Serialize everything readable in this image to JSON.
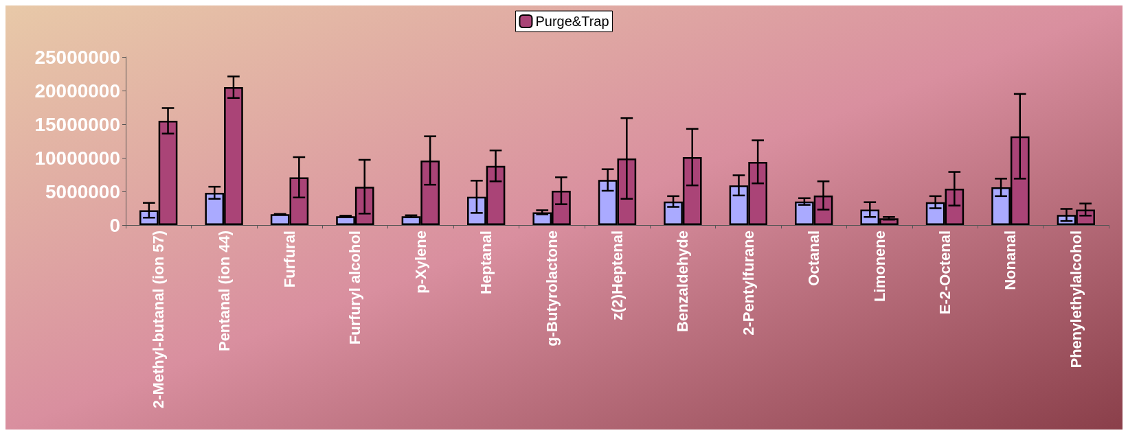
{
  "chart_data": {
    "type": "bar",
    "legend": "top",
    "grid": false,
    "categories": [
      "2-Methyl-butanal (ion 57)",
      "Pentanal (ion 44)",
      "Furfural",
      "Furfuryl alcohol",
      "p-Xylene",
      "Heptanal",
      "g-Butyrolactone",
      "z(2)Heptenal",
      "Benzaldehyde",
      "2-Pentylfurane",
      "Octanal",
      "Limonene",
      "E-2-Octenal",
      "Nonanal",
      "Phenylethylalcohol"
    ],
    "ylim": [
      0,
      25000000
    ],
    "yticks": [
      0,
      5000000,
      10000000,
      15000000,
      20000000,
      25000000
    ],
    "series": [
      {
        "color": "#aaaaff",
        "values": [
          2200000,
          4800000,
          1600000,
          1300000,
          1300000,
          4200000,
          1900000,
          6700000,
          3500000,
          5900000,
          3500000,
          2300000,
          3400000,
          5600000,
          1500000
        ],
        "errors": [
          1100000,
          900000,
          50000,
          100000,
          150000,
          2400000,
          300000,
          1600000,
          800000,
          1500000,
          500000,
          1100000,
          900000,
          1300000,
          900000
        ]
      },
      {
        "name": "Purge&Trap",
        "color": "#aa4477",
        "values": [
          15500000,
          20500000,
          7100000,
          5700000,
          9600000,
          8800000,
          5100000,
          9900000,
          10100000,
          9400000,
          4400000,
          1000000,
          5400000,
          13200000,
          2300000
        ],
        "errors": [
          1900000,
          1600000,
          3000000,
          4000000,
          3600000,
          2300000,
          2000000,
          6000000,
          4200000,
          3200000,
          2100000,
          200000,
          2500000,
          6300000,
          900000
        ]
      }
    ]
  }
}
